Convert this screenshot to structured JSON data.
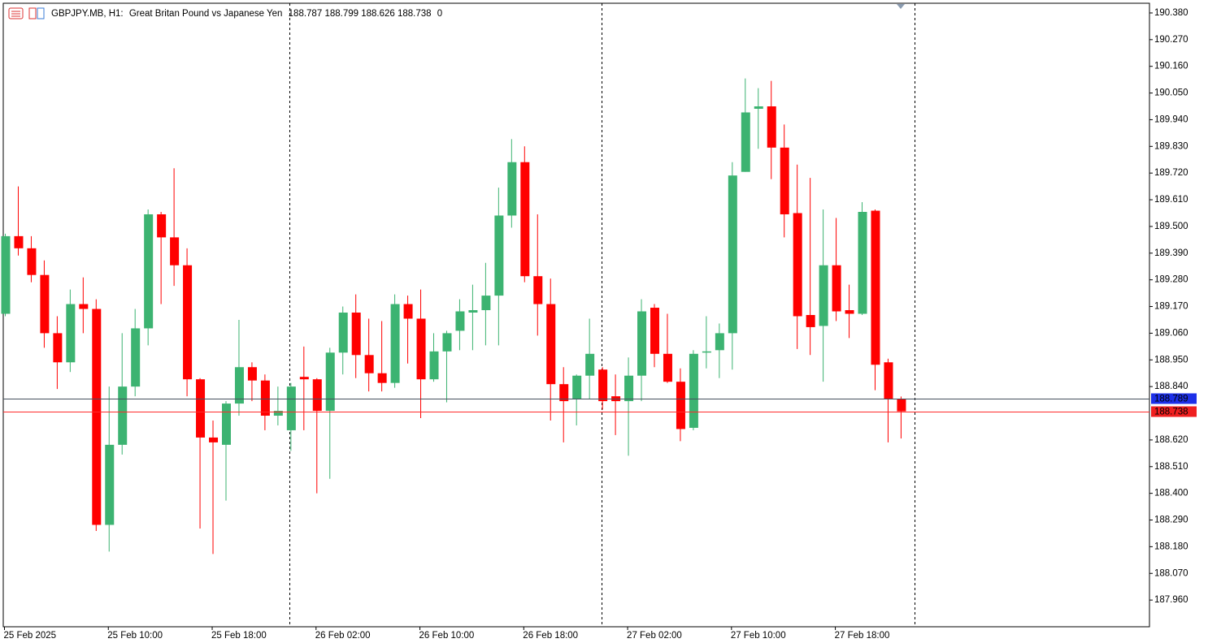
{
  "chart_data": {
    "type": "candlestick",
    "symbol": "GBPJPY.MB, H1:",
    "description": "Great Britan Pound vs Japanese Yen",
    "spread": 0,
    "categories": [
      "25 Feb 2025",
      null,
      null,
      null,
      null,
      null,
      null,
      null,
      "25 Feb 10:00",
      null,
      null,
      null,
      null,
      null,
      null,
      null,
      "25 Feb 18:00",
      null,
      null,
      null,
      null,
      null,
      null,
      null,
      "26 Feb 02:00",
      null,
      null,
      null,
      null,
      null,
      null,
      null,
      "26 Feb 10:00",
      null,
      null,
      null,
      null,
      null,
      null,
      null,
      "26 Feb 18:00",
      null,
      null,
      null,
      null,
      null,
      null,
      null,
      "27 Feb 02:00",
      null,
      null,
      null,
      null,
      null,
      null,
      null,
      "27 Feb 10:00",
      null,
      null,
      null,
      null,
      null,
      null,
      null,
      "27 Feb 18:00",
      null,
      null,
      null,
      null,
      null
    ],
    "open": [
      189.14,
      189.46,
      189.41,
      189.3,
      189.06,
      188.94,
      189.18,
      189.16,
      188.27,
      188.6,
      188.84,
      189.08,
      189.55,
      189.455,
      189.34,
      188.87,
      188.63,
      188.6,
      188.77,
      188.92,
      188.865,
      188.72,
      188.66,
      188.88,
      188.87,
      188.74,
      188.98,
      189.145,
      188.97,
      188.895,
      188.855,
      189.18,
      189.12,
      188.87,
      188.985,
      189.07,
      189.145,
      189.155,
      189.215,
      189.545,
      189.765,
      189.295,
      189.18,
      188.85,
      188.79,
      188.885,
      188.91,
      188.8,
      188.78,
      188.885,
      189.165,
      188.975,
      188.86,
      188.67,
      188.98,
      188.99,
      189.06,
      189.725,
      189.985,
      189.995,
      189.825,
      189.555,
      189.135,
      189.09,
      189.34,
      189.155,
      189.14,
      189.565,
      188.94,
      188.787
    ],
    "high": [
      189.47,
      189.665,
      189.46,
      189.36,
      189.13,
      189.24,
      189.29,
      189.2,
      188.84,
      189.06,
      189.16,
      189.57,
      189.56,
      189.74,
      189.41,
      188.875,
      188.7,
      188.78,
      189.115,
      188.94,
      188.89,
      188.84,
      188.855,
      189.005,
      188.875,
      189.0,
      189.17,
      189.22,
      189.12,
      189.11,
      189.22,
      189.215,
      189.24,
      189.06,
      189.07,
      189.2,
      189.26,
      189.35,
      189.66,
      189.86,
      189.83,
      189.55,
      189.285,
      188.92,
      188.89,
      189.12,
      188.92,
      188.89,
      188.96,
      189.2,
      189.18,
      189.14,
      188.915,
      188.99,
      189.13,
      189.1,
      189.765,
      190.11,
      190.07,
      190.1,
      189.92,
      189.755,
      189.7,
      189.57,
      189.535,
      189.26,
      189.6,
      189.57,
      188.955,
      188.799
    ],
    "low": [
      189.13,
      189.38,
      189.27,
      189.0,
      188.83,
      188.9,
      189.06,
      188.245,
      188.16,
      188.56,
      188.8,
      189.01,
      189.18,
      189.255,
      188.8,
      188.255,
      188.15,
      188.37,
      188.72,
      188.78,
      188.66,
      188.68,
      188.575,
      188.66,
      188.4,
      188.46,
      188.89,
      188.875,
      188.82,
      188.82,
      188.835,
      188.935,
      188.71,
      188.86,
      188.775,
      188.99,
      188.99,
      189.01,
      189.01,
      189.495,
      189.27,
      189.05,
      188.7,
      188.61,
      188.68,
      188.79,
      188.745,
      188.64,
      188.555,
      188.78,
      188.92,
      188.855,
      188.615,
      188.66,
      188.915,
      188.875,
      188.91,
      189.725,
      189.82,
      189.695,
      189.455,
      188.995,
      188.97,
      188.86,
      189.11,
      189.04,
      189.135,
      188.825,
      188.61,
      188.626
    ],
    "close": [
      189.46,
      189.41,
      189.3,
      189.06,
      188.94,
      189.18,
      189.16,
      188.27,
      188.6,
      188.84,
      189.08,
      189.55,
      189.455,
      189.34,
      188.87,
      188.63,
      188.61,
      188.77,
      188.92,
      188.865,
      188.72,
      188.74,
      188.84,
      188.87,
      188.74,
      188.98,
      189.145,
      188.97,
      188.895,
      188.855,
      189.18,
      189.12,
      188.87,
      188.985,
      189.06,
      189.15,
      189.155,
      189.215,
      189.545,
      189.765,
      189.295,
      189.18,
      188.85,
      188.78,
      188.885,
      188.975,
      188.78,
      188.78,
      188.885,
      189.15,
      188.975,
      188.86,
      188.665,
      188.975,
      188.985,
      189.06,
      189.71,
      189.97,
      189.995,
      189.825,
      189.55,
      189.13,
      189.085,
      189.34,
      189.15,
      189.14,
      189.56,
      188.93,
      188.79,
      188.738
    ],
    "up_color": "#3cb371",
    "down_color": "#ff0000",
    "ylim": [
      187.85,
      190.42
    ],
    "yticks": [
      {
        "value": 190.38,
        "label": "190.380"
      },
      {
        "value": 190.27,
        "label": "190.270"
      },
      {
        "value": 190.16,
        "label": "190.160"
      },
      {
        "value": 190.05,
        "label": "190.050"
      },
      {
        "value": 189.94,
        "label": "189.940"
      },
      {
        "value": 189.83,
        "label": "189.830"
      },
      {
        "value": 189.72,
        "label": "189.720"
      },
      {
        "value": 189.61,
        "label": "189.610"
      },
      {
        "value": 189.5,
        "label": "189.500"
      },
      {
        "value": 189.39,
        "label": "189.390"
      },
      {
        "value": 189.28,
        "label": "189.280"
      },
      {
        "value": 189.17,
        "label": "189.170"
      },
      {
        "value": 189.06,
        "label": "189.060"
      },
      {
        "value": 188.95,
        "label": "188.950"
      },
      {
        "value": 188.84,
        "label": "188.840"
      },
      {
        "value": 188.62,
        "label": "188.620"
      },
      {
        "value": 188.51,
        "label": "188.510"
      },
      {
        "value": 188.4,
        "label": "188.400"
      },
      {
        "value": 188.29,
        "label": "188.290"
      },
      {
        "value": 188.18,
        "label": "188.180"
      },
      {
        "value": 188.07,
        "label": "188.070"
      },
      {
        "value": 187.96,
        "label": "187.960"
      }
    ],
    "grid": false,
    "price_lines": [
      {
        "value": 188.789,
        "line_color": "#44505c",
        "label_color": "#1c2fe8"
      },
      {
        "value": 188.738,
        "line_color": "#ff2a2a",
        "label_color": "#ef1f1f"
      }
    ]
  }
}
